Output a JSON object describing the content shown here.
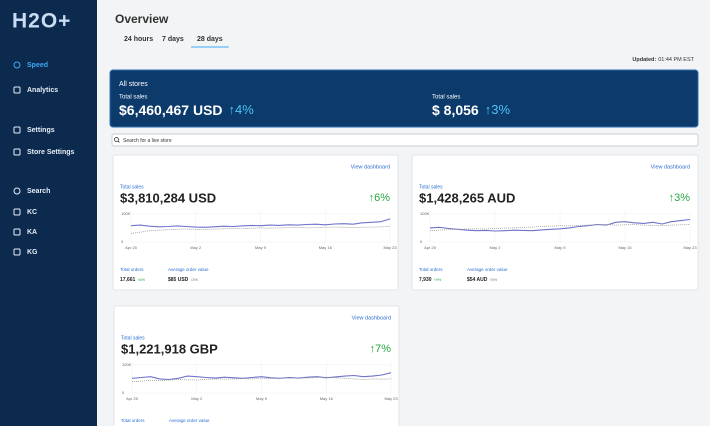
{
  "sidebar": {
    "logo": "H2O+",
    "active": 0,
    "nav": [
      "Speed",
      "Analytics",
      "Settings",
      "Store Settings",
      "Search",
      "KC",
      "KA",
      "KG"
    ]
  },
  "header": {
    "title": "Overview",
    "tabs": [
      "24 hours",
      "7 days",
      "28 days"
    ],
    "active_tab": 2,
    "updated_label": "Updated:",
    "updated_time": "01:44 PM EST"
  },
  "summary": {
    "title": "All stores",
    "items": [
      {
        "label": "Total sales",
        "value": "$6,460,467 USD",
        "change": "↑4%"
      },
      {
        "label": "Total sales",
        "value": "$ 8,056",
        "change": "↑3%"
      }
    ]
  },
  "search_placeholder": "Search for a live store",
  "stores": [
    {
      "link": "View dashboard",
      "sales_label": "Total sales",
      "sales": "$3,810,284 USD",
      "change": "↑6%",
      "chart": {
        "type": "line",
        "categories": [
          "Apr 25",
          null,
          null,
          null,
          null,
          null,
          null,
          "May 2",
          null,
          null,
          null,
          null,
          null,
          null,
          "May 9",
          null,
          null,
          null,
          null,
          null,
          null,
          "May 16",
          null,
          null,
          null,
          null,
          null,
          null,
          "May 23"
        ],
        "ylim": [
          0,
          110000
        ],
        "yticks": [
          0,
          {
            "value": 100000,
            "label": "100K"
          }
        ],
        "series": [
          {
            "color": "#6f73c9",
            "dashed": false,
            "values": [
              58000,
              60000,
              56000,
              54000,
              55000,
              57000,
              55000,
              53000,
              52000,
              54000,
              56000,
              55000,
              57000,
              59000,
              58000,
              60000,
              59000,
              61000,
              60000,
              62000,
              63000,
              61000,
              64000,
              65000,
              63000,
              68000,
              70000,
              72000,
              82000
            ]
          },
          {
            "color": "#9a9a9a",
            "dashed": true,
            "values": [
              30000,
              35000,
              40000,
              42000,
              44000,
              45000,
              46000,
              45000,
              44000,
              46000,
              47000,
              48000,
              47000,
              49000,
              50000,
              49000,
              50000,
              51000,
              52000,
              50000,
              51000,
              52000,
              53000,
              52000,
              51000,
              52000,
              53000,
              54000,
              55000
            ]
          }
        ]
      },
      "orders_label": "Total orders",
      "orders": "17,661",
      "orders_change": "↑6%",
      "aov_label": "Average order value",
      "aov": "$85 USD",
      "aov_change": "↓3%"
    },
    {
      "link": "View dashboard",
      "sales_label": "Total sales",
      "sales": "$1,428,265 AUD",
      "change": "↑3%",
      "chart": {
        "type": "line",
        "categories": [
          "Apr 25",
          null,
          null,
          null,
          null,
          null,
          null,
          "May 2",
          null,
          null,
          null,
          null,
          null,
          null,
          "May 9",
          null,
          null,
          null,
          null,
          null,
          null,
          "May 16",
          null,
          null,
          null,
          null,
          null,
          null,
          "May 23"
        ],
        "ylim": [
          0,
          110000
        ],
        "yticks": [
          0,
          {
            "value": 100000,
            "label": "100K"
          }
        ],
        "series": [
          {
            "color": "#6f73c9",
            "dashed": false,
            "values": [
              50000,
              52000,
              48000,
              45000,
              42000,
              40000,
              41000,
              39000,
              40000,
              42000,
              41000,
              40000,
              43000,
              45000,
              47000,
              50000,
              55000,
              58000,
              62000,
              60000,
              70000,
              72000,
              68000,
              66000,
              70000,
              64000,
              72000,
              76000,
              80000
            ]
          },
          {
            "color": "#9a9a9a",
            "dashed": true,
            "values": [
              40000,
              42000,
              44000,
              45000,
              46000,
              47000,
              46000,
              48000,
              49000,
              50000,
              52000,
              53000,
              55000,
              56000,
              58000,
              57000,
              59000,
              60000,
              61000,
              62000,
              60000,
              61000,
              62000,
              60000,
              59000,
              58000,
              60000,
              61000,
              62000
            ]
          }
        ]
      },
      "orders_label": "Total orders",
      "orders": "7,930",
      "orders_change": "↑9%",
      "aov_label": "Average order value",
      "aov": "$54 AUD",
      "aov_change": "↑5%"
    },
    {
      "link": "View dashboard",
      "sales_label": "Total sales",
      "sales": "$1,221,918 GBP",
      "change": "↑7%",
      "chart": {
        "type": "line",
        "categories": [
          "Apr 25",
          null,
          null,
          null,
          null,
          null,
          null,
          "May 2",
          null,
          null,
          null,
          null,
          null,
          null,
          "May 9",
          null,
          null,
          null,
          null,
          null,
          null,
          "May 16",
          null,
          null,
          null,
          null,
          null,
          null,
          "May 23"
        ],
        "ylim": [
          0,
          110000
        ],
        "yticks": [
          0,
          {
            "value": 100000,
            "label": "100K"
          }
        ],
        "series": [
          {
            "color": "#6f73c9",
            "dashed": false,
            "values": [
              52000,
              55000,
              58000,
              50000,
              48000,
              52000,
              60000,
              58000,
              55000,
              53000,
              56000,
              54000,
              52000,
              55000,
              58000,
              54000,
              52000,
              55000,
              53000,
              56000,
              58000,
              54000,
              57000,
              60000,
              62000,
              58000,
              60000,
              64000,
              72000
            ]
          },
          {
            "color": "#9a9a9a",
            "dashed": true,
            "values": [
              40000,
              42000,
              45000,
              44000,
              46000,
              48000,
              47000,
              46000,
              48000,
              50000,
              49000,
              50000,
              51000,
              50000,
              52000,
              51000,
              53000,
              52000,
              54000,
              53000,
              55000,
              56000,
              54000,
              52000,
              50000,
              48000,
              50000,
              49000,
              50000
            ]
          }
        ]
      },
      "orders_label": "Total orders",
      "aov_label": "Average order value"
    }
  ]
}
